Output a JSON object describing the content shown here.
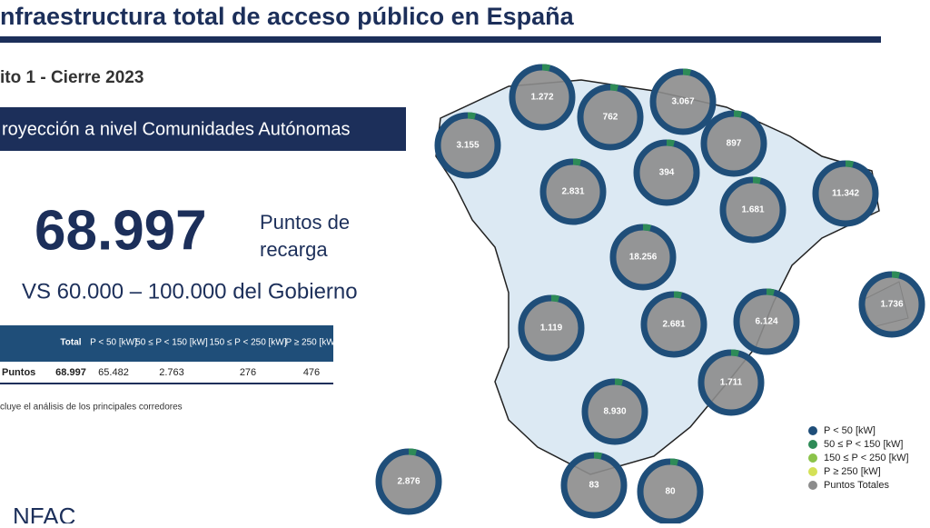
{
  "header": {
    "title": "nfraestructura total de acceso público en España",
    "subtitle": "ito 1 - Cierre 2023"
  },
  "banner": "royección a nivel Comunidades Autónomas",
  "kpi": {
    "value": "68.997",
    "label_line1": "Puntos de",
    "label_line2": "recarga",
    "comparison": "VS 60.000 – 100.000 del Gobierno"
  },
  "table": {
    "header": [
      "Total",
      "P < 50 [kW]",
      "50 ≤ P < 150 [kW]",
      "150 ≤ P < 250 [kW]",
      "P ≥ 250 [kW]"
    ],
    "rows": [
      [
        "Puntos",
        "68.997",
        "65.482",
        "2.763",
        "276",
        "476"
      ]
    ]
  },
  "footnote": "cluye el análisis de los principales corredores",
  "logo": "NFAC",
  "map": {
    "regions": [
      "1.272",
      "762",
      "3.067",
      "3.155",
      "897",
      "394",
      "2.831",
      "11.342",
      "1.681",
      "18.256",
      "1.736",
      "1.119",
      "2.681",
      "6.124",
      "1.711",
      "8.930",
      "2.876",
      "83",
      "80"
    ]
  },
  "legend": [
    {
      "label": "P < 50 [kW]",
      "color": "#1f4e79"
    },
    {
      "label": "50 ≤ P < 150 [kW]",
      "color": "#2e8b57"
    },
    {
      "label": "150 ≤ P < 250 [kW]",
      "color": "#8bc34a"
    },
    {
      "label": "P ≥ 250 [kW]",
      "color": "#d4e157"
    },
    {
      "label": "Puntos Totales",
      "color": "#8c8c8c"
    }
  ]
}
